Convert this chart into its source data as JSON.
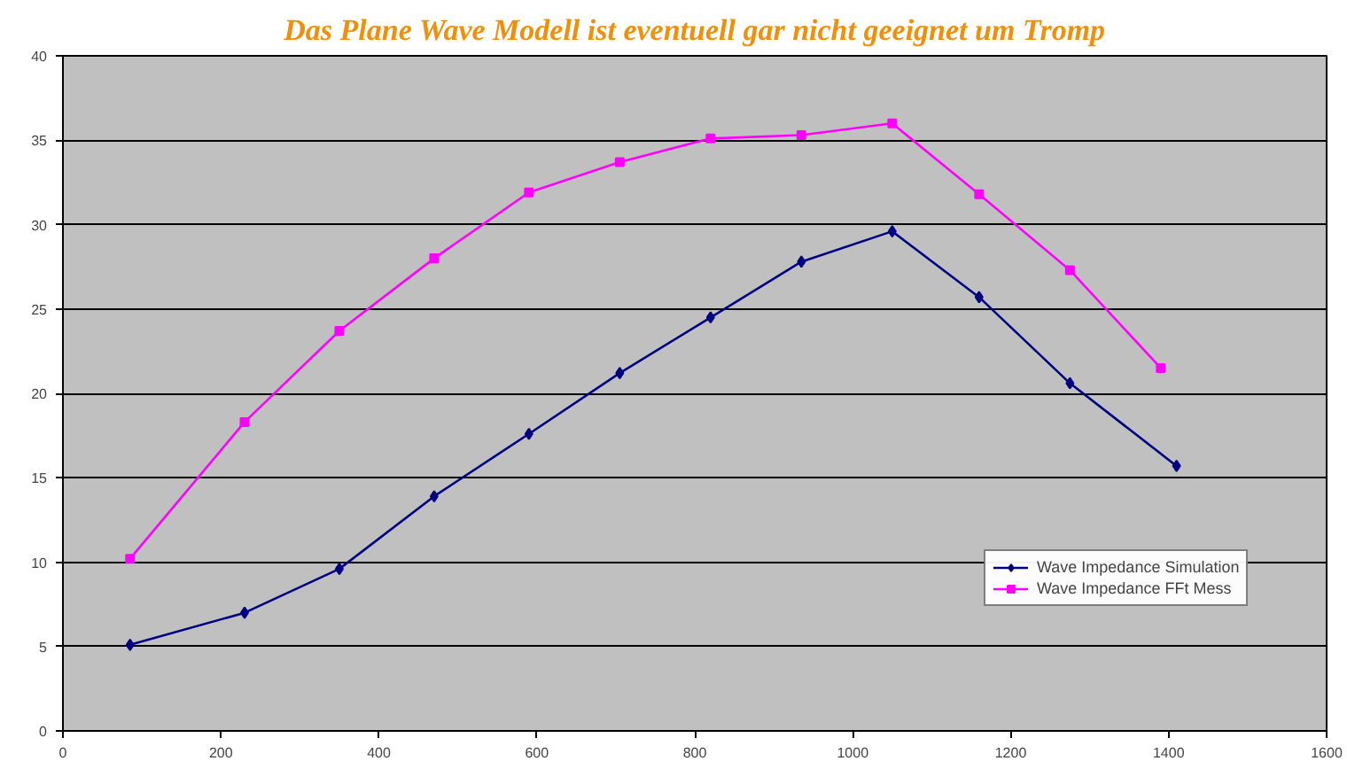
{
  "chart_data": {
    "type": "line",
    "title": "Das Plane Wave Modell ist eventuell gar nicht geeignet um Tromp",
    "x": [
      85,
      230,
      350,
      470,
      590,
      705,
      820,
      935,
      1050,
      1160,
      1275,
      1410
    ],
    "series": [
      {
        "name": "Wave Impedance Simulation",
        "color": "#000080",
        "marker": "diamond",
        "values": [
          5.1,
          7.0,
          9.6,
          13.9,
          17.6,
          21.2,
          24.5,
          27.8,
          29.6,
          25.7,
          20.6,
          15.7
        ]
      },
      {
        "name": "Wave Impedance FFt Mess",
        "color": "#ff00ff",
        "marker": "square",
        "x": [
          85,
          230,
          350,
          470,
          590,
          705,
          820,
          935,
          1050,
          1160,
          1275,
          1390
        ],
        "values": [
          10.2,
          18.3,
          23.7,
          28.0,
          31.9,
          33.7,
          35.1,
          35.3,
          36.0,
          31.8,
          27.3,
          21.5
        ]
      }
    ],
    "xlim": [
      0,
      1600
    ],
    "xticks": [
      0,
      200,
      400,
      600,
      800,
      1000,
      1200,
      1400,
      1600
    ],
    "ylim": [
      0,
      40
    ],
    "yticks": [
      0,
      5,
      10,
      15,
      20,
      25,
      30,
      35,
      40
    ],
    "grid": "y",
    "legend": "right",
    "line_style": "solid"
  }
}
